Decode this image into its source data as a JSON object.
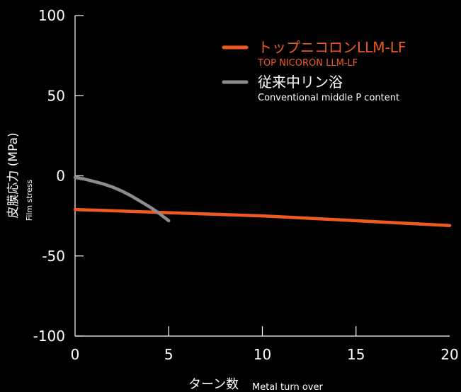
{
  "chart_data": {
    "type": "line",
    "xlim": [
      0,
      20
    ],
    "ylim": [
      -100,
      100
    ],
    "x_ticks": [
      "0",
      "5",
      "10",
      "15",
      "20"
    ],
    "x_tick_values": [
      0,
      5,
      10,
      15,
      20
    ],
    "y_ticks": [
      "100",
      "50",
      "0",
      "-50",
      "-100"
    ],
    "y_tick_values": [
      100,
      50,
      0,
      -50,
      -100
    ],
    "ylabel": "皮膜応力 (MPa)",
    "ylabel_sub": "Film stress",
    "xlabel": "ターン数",
    "xlabel_sub": "Metal turn over",
    "grid": false,
    "legend_position": "top-right",
    "series": [
      {
        "name": "トップニコロンLLM-LF",
        "name_sub": "TOP NICORON LLM-LF",
        "color": "#f05a22",
        "x": [
          0,
          5,
          10,
          15,
          20
        ],
        "y": [
          -21,
          -23,
          -25,
          -28,
          -31
        ]
      },
      {
        "name": "従来中リン浴",
        "name_sub": "Conventional middle P content",
        "color": "#8c8c8c",
        "x": [
          0,
          0.5,
          1,
          1.5,
          2,
          2.5,
          3,
          3.5,
          4,
          4.5,
          5
        ],
        "y": [
          -1,
          -2,
          -3.5,
          -5,
          -7,
          -9.5,
          -12.5,
          -16,
          -19.5,
          -23.5,
          -28
        ]
      }
    ]
  }
}
